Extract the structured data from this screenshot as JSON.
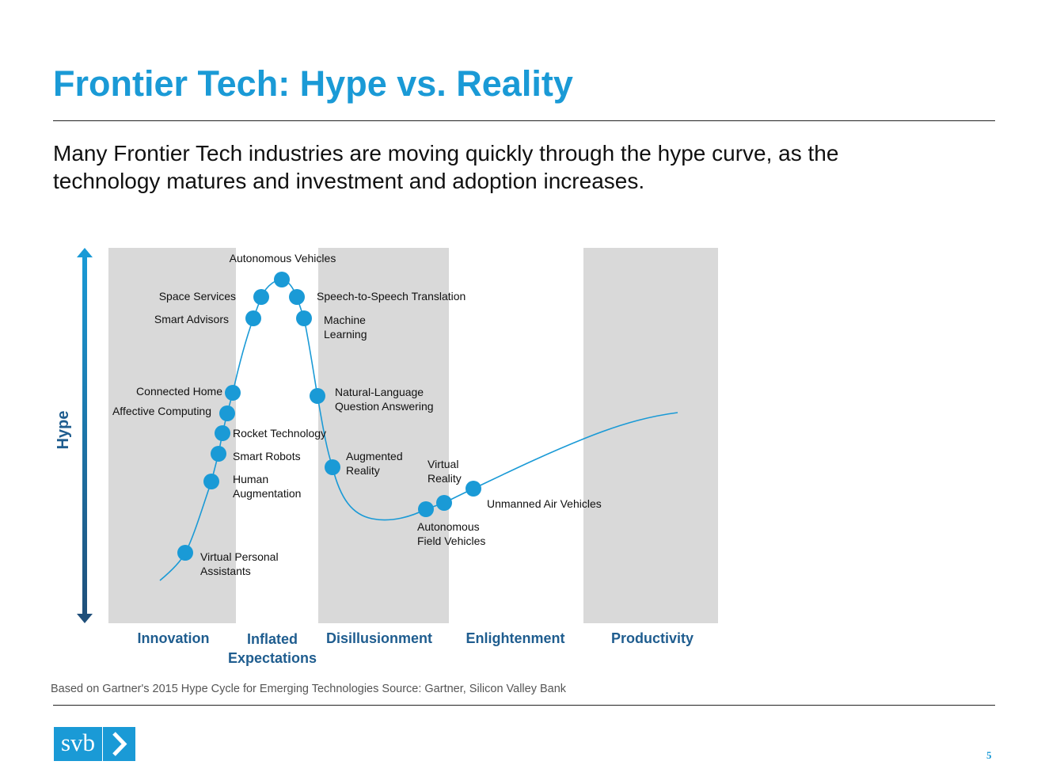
{
  "page": {
    "title": "Frontier Tech: Hype vs. Reality",
    "subtitle": "Many Frontier Tech industries are moving quickly through the hype curve, as the technology matures and investment and adoption increases.",
    "footnote": "Based on Gartner's 2015 Hype Cycle for Emerging Technologies  Source: Gartner, Silicon Valley Bank",
    "page_number": "5",
    "logo_text": "svb"
  },
  "diagram": {
    "y_axis_label": "Hype",
    "phases": [
      {
        "line1": "Innovation",
        "line2": ""
      },
      {
        "line1": "Inflated",
        "line2": "Expectations"
      },
      {
        "line1": "Disillusionment",
        "line2": ""
      },
      {
        "line1": "Enlightenment",
        "line2": ""
      },
      {
        "line1": "Productivity",
        "line2": ""
      }
    ],
    "technologies": [
      {
        "lines": [
          "Virtual Personal",
          "Assistants"
        ]
      },
      {
        "lines": [
          "Human",
          "Augmentation"
        ]
      },
      {
        "lines": [
          "Smart Robots"
        ]
      },
      {
        "lines": [
          "Rocket Technology"
        ]
      },
      {
        "lines": [
          "Affective Computing"
        ]
      },
      {
        "lines": [
          "Connected Home"
        ]
      },
      {
        "lines": [
          "Smart Advisors"
        ]
      },
      {
        "lines": [
          "Space Services"
        ]
      },
      {
        "lines": [
          "Autonomous Vehicles"
        ]
      },
      {
        "lines": [
          "Speech-to-Speech Translation"
        ]
      },
      {
        "lines": [
          "Machine",
          "Learning"
        ]
      },
      {
        "lines": [
          "Natural-Language",
          "Question Answering"
        ]
      },
      {
        "lines": [
          "Augmented",
          "Reality"
        ]
      },
      {
        "lines": [
          "Autonomous",
          "Field Vehicles"
        ]
      },
      {
        "lines": [
          "Virtual",
          "Reality"
        ]
      },
      {
        "lines": [
          "Unmanned Air Vehicles"
        ]
      }
    ],
    "colors": {
      "accent": "#1a9ad6",
      "phase_band": "#d9d9d9",
      "phase_label": "#1f5d8f",
      "axis_top": "#1a9ad6",
      "axis_bottom": "#1f4f7a"
    }
  }
}
